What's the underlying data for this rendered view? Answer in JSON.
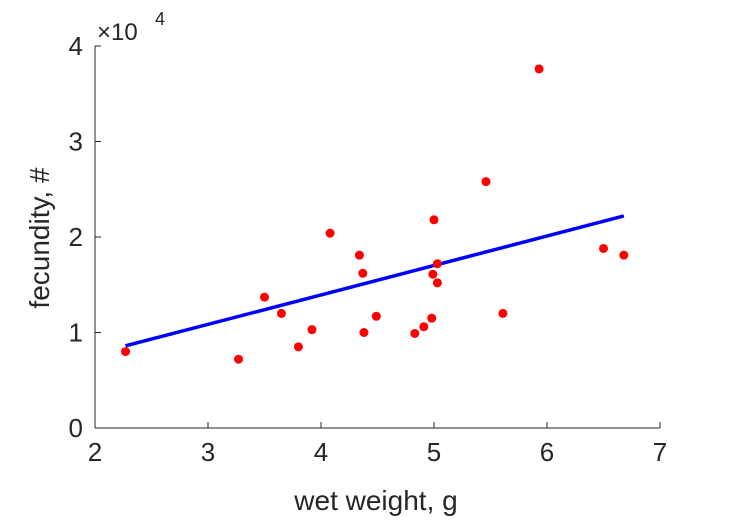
{
  "chart_data": {
    "type": "scatter",
    "xlabel": "wet weight, g",
    "ylabel": "fecundity, #",
    "exponent_prefix": "×10",
    "exponent_power": "4",
    "xlim": [
      2,
      7
    ],
    "ylim": [
      0,
      40000
    ],
    "x_ticks": [
      2,
      3,
      4,
      5,
      6,
      7
    ],
    "y_ticks": [
      0,
      10000,
      20000,
      30000,
      40000
    ],
    "y_tick_labels": [
      "0",
      "1",
      "2",
      "3",
      "4"
    ],
    "grid": false,
    "colors": {
      "points": "#ff0000",
      "fit_line": "#0000ff",
      "axes": "#262626"
    },
    "points": [
      {
        "x": 2.27,
        "y": 8000
      },
      {
        "x": 3.27,
        "y": 7200
      },
      {
        "x": 3.5,
        "y": 13700
      },
      {
        "x": 3.65,
        "y": 12000
      },
      {
        "x": 3.8,
        "y": 8500
      },
      {
        "x": 3.92,
        "y": 10300
      },
      {
        "x": 4.08,
        "y": 20400
      },
      {
        "x": 4.34,
        "y": 18100
      },
      {
        "x": 4.37,
        "y": 16200
      },
      {
        "x": 4.38,
        "y": 10000
      },
      {
        "x": 4.49,
        "y": 11700
      },
      {
        "x": 4.83,
        "y": 9900
      },
      {
        "x": 4.91,
        "y": 10600
      },
      {
        "x": 4.98,
        "y": 11500
      },
      {
        "x": 4.99,
        "y": 16100
      },
      {
        "x": 5.0,
        "y": 21800
      },
      {
        "x": 5.03,
        "y": 17200
      },
      {
        "x": 5.03,
        "y": 15200
      },
      {
        "x": 5.46,
        "y": 25800
      },
      {
        "x": 5.61,
        "y": 12000
      },
      {
        "x": 5.93,
        "y": 37600
      },
      {
        "x": 6.5,
        "y": 18800
      },
      {
        "x": 6.68,
        "y": 18100
      }
    ],
    "fit_line": {
      "x": [
        2.27,
        6.68
      ],
      "y": [
        8600,
        22200
      ]
    }
  }
}
